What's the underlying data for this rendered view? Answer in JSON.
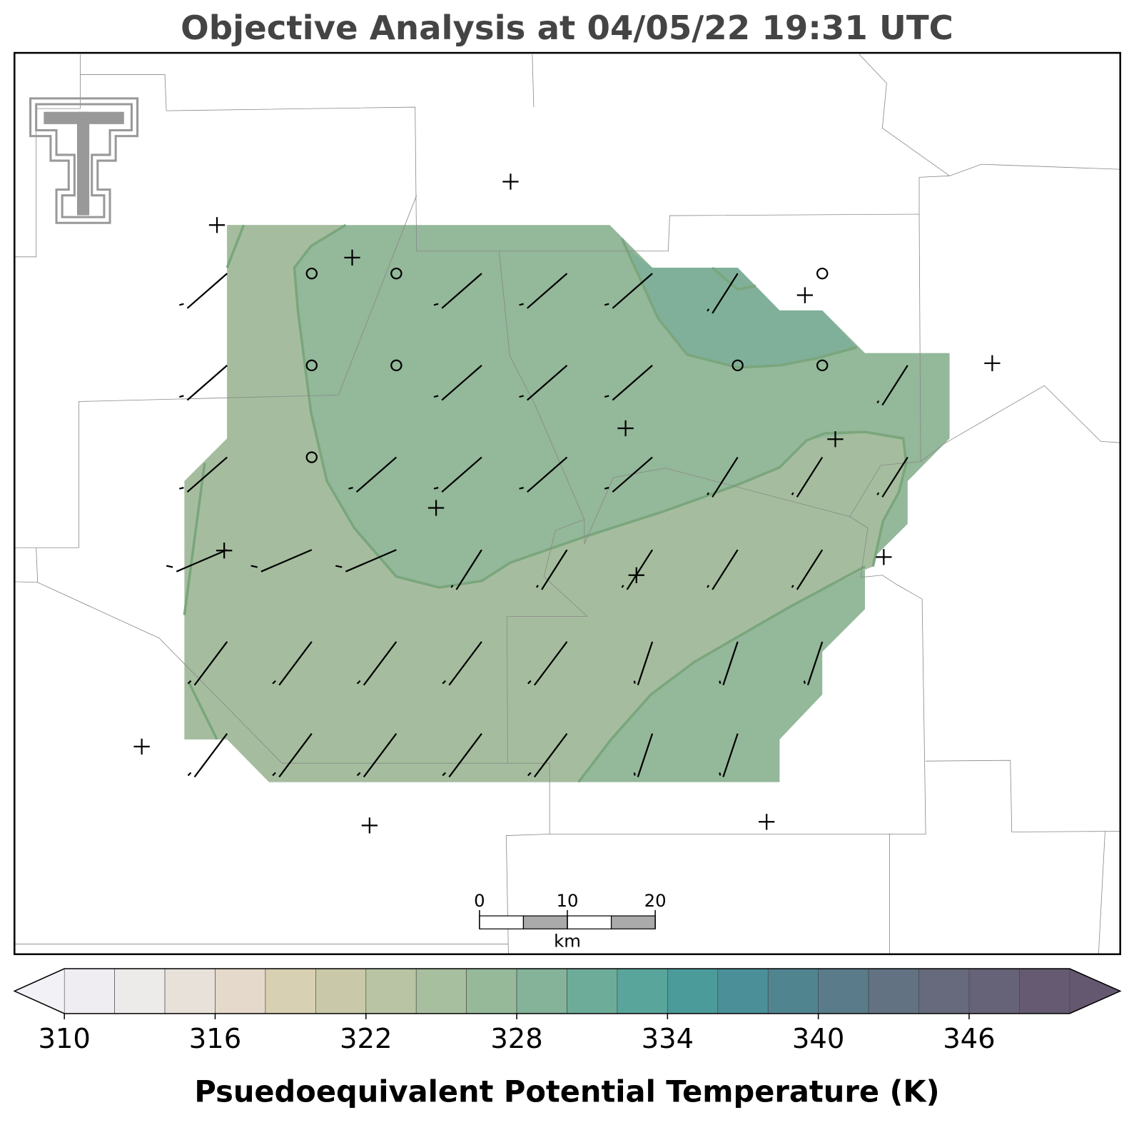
{
  "title": "Objective Analysis at 04/05/22 19:31 UTC",
  "scale_bar": {
    "ticks": [
      0,
      10,
      20
    ],
    "unit": "km"
  },
  "colorbar": {
    "type": "colorbar",
    "levels": [
      310,
      312,
      314,
      316,
      318,
      320,
      322,
      324,
      326,
      328,
      330,
      332,
      334,
      336,
      338,
      340,
      342,
      344,
      346,
      348,
      350
    ],
    "colors": [
      "#efedf1",
      "#edeaea",
      "#e8e1da",
      "#e4d9ca",
      "#d8d0b2",
      "#c9c8a8",
      "#b8c4a4",
      "#a7bf9e",
      "#96b99a",
      "#84b39a",
      "#6eac9a",
      "#5aa59b",
      "#4c9b9b",
      "#4b9098",
      "#508590",
      "#5a7b89",
      "#627283",
      "#666a7c",
      "#666277",
      "#655a71"
    ],
    "extend_colors": [
      "#f2f1f6",
      "#63586f"
    ],
    "ticks": [
      310,
      316,
      322,
      328,
      334,
      340,
      346
    ],
    "label": "Psuedoequivalent Potential Temperature (K)"
  }
}
